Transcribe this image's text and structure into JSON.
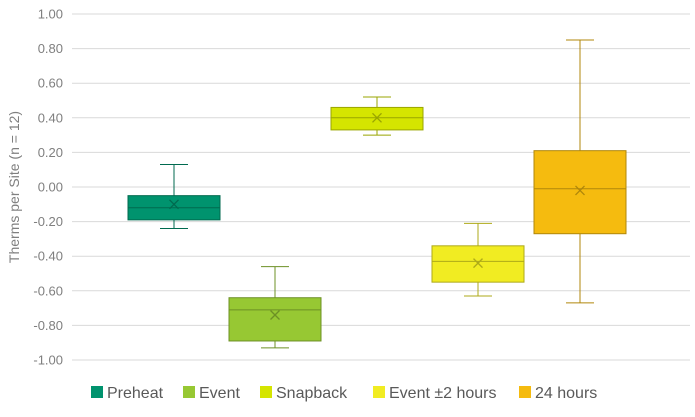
{
  "chart_data": {
    "type": "boxplot",
    "title": "",
    "xlabel": "",
    "ylabel": "Therms per Site (n = 12)",
    "ylim": [
      -1.0,
      1.0
    ],
    "ytick_step": 0.2,
    "yticks": [
      "-1.00",
      "-0.80",
      "-0.60",
      "-0.40",
      "-0.20",
      "0.00",
      "0.20",
      "0.40",
      "0.60",
      "0.80",
      "1.00"
    ],
    "grid": true,
    "legend_position": "bottom",
    "series": [
      {
        "name": "Preheat",
        "color": "#00936e",
        "whisker_low": -0.24,
        "q1": -0.19,
        "median": -0.12,
        "q3": -0.05,
        "whisker_high": 0.13,
        "mean": -0.1
      },
      {
        "name": "Event",
        "color": "#97c833",
        "whisker_low": -0.93,
        "q1": -0.89,
        "median": -0.71,
        "q3": -0.64,
        "whisker_high": -0.46,
        "mean": -0.74
      },
      {
        "name": "Snapback",
        "color": "#d5e500",
        "whisker_low": 0.3,
        "q1": 0.33,
        "median": 0.4,
        "q3": 0.46,
        "whisker_high": 0.52,
        "mean": 0.4
      },
      {
        "name": "Event ±2 hours",
        "color": "#f1ec22",
        "whisker_low": -0.63,
        "q1": -0.55,
        "median": -0.43,
        "q3": -0.34,
        "whisker_high": -0.21,
        "mean": -0.44
      },
      {
        "name": "24 hours",
        "color": "#f5bb0f",
        "whisker_low": -0.67,
        "q1": -0.27,
        "median": -0.01,
        "q3": 0.21,
        "whisker_high": 0.85,
        "mean": -0.02
      }
    ]
  }
}
